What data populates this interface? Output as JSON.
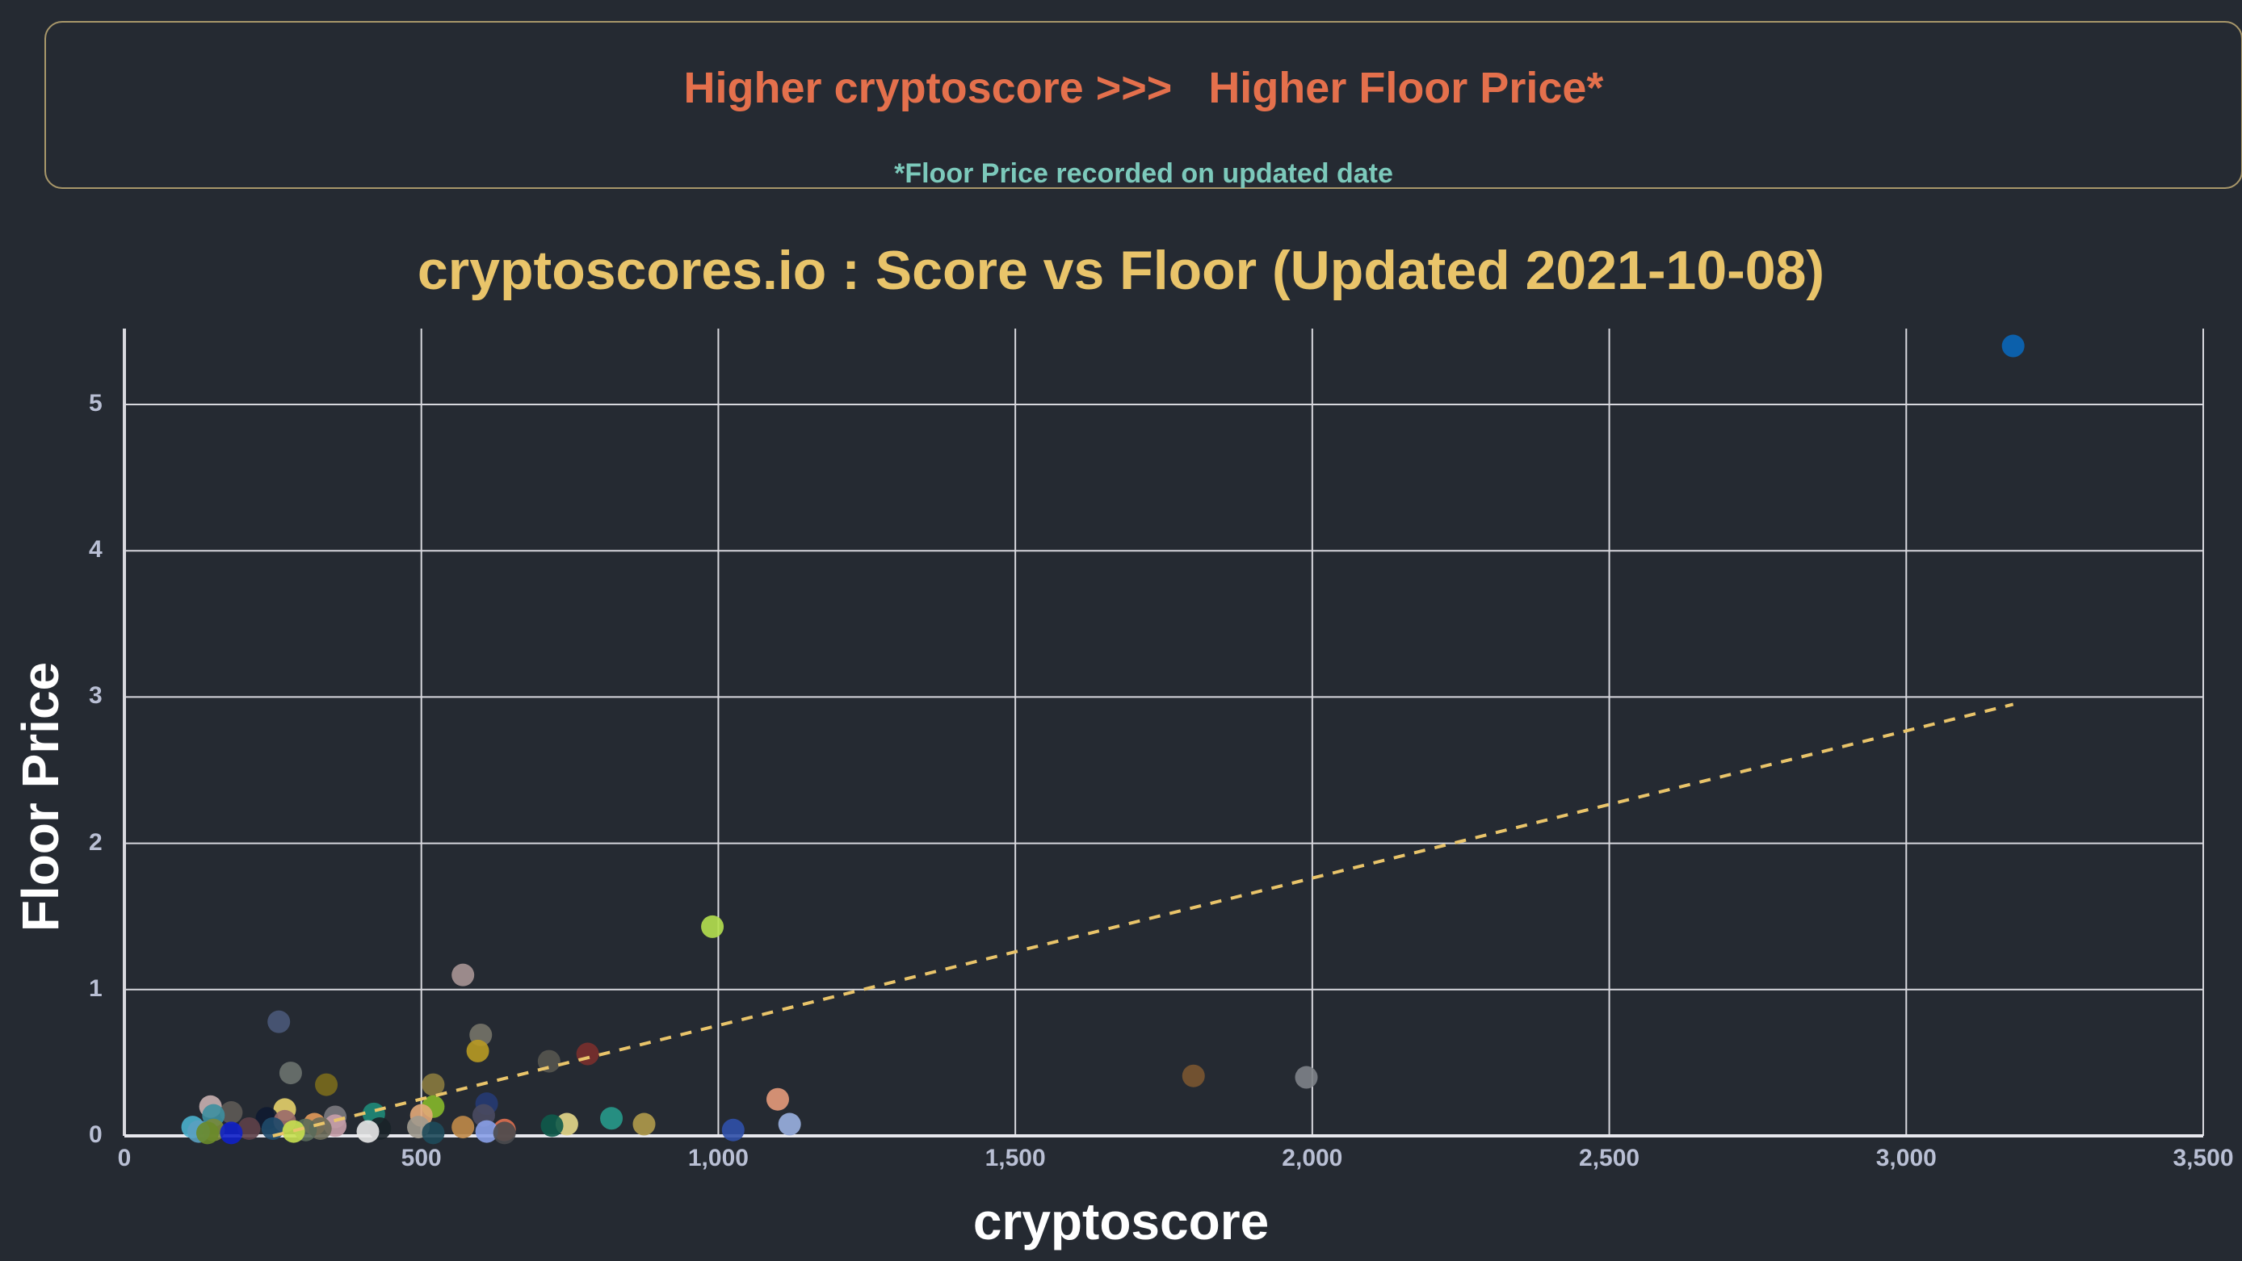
{
  "banner": {
    "headline": "Higher cryptoscore >>>   Higher Floor Price*",
    "footnote": "*Floor Price recorded on updated date",
    "colors": {
      "headline": "#e4704c",
      "footnote": "#7cc9bb",
      "border": "#a8976a"
    }
  },
  "chart_data": {
    "type": "scatter",
    "title": "cryptoscores.io : Score vs Floor (Updated 2021-10-08)",
    "xlabel": "cryptoscore",
    "ylabel": "Floor Price",
    "xlim": [
      0,
      3500
    ],
    "ylim": [
      0,
      5.5
    ],
    "x_ticks": [
      "0",
      "500",
      "1,000",
      "1,500",
      "2,000",
      "2,500",
      "3,000",
      "3,500"
    ],
    "y_ticks": [
      "0",
      "1",
      "2",
      "3",
      "4",
      "5"
    ],
    "grid": true,
    "legend": "none",
    "trendline": {
      "style": "dashed",
      "color": "#e9c46a",
      "x": [
        250,
        3180
      ],
      "y": [
        0.0,
        2.95
      ]
    },
    "points": [
      {
        "x": 3180,
        "y": 5.4,
        "color": "#0a66b8"
      },
      {
        "x": 990,
        "y": 1.43,
        "color": "#b5e04f"
      },
      {
        "x": 570,
        "y": 1.1,
        "color": "#a89595"
      },
      {
        "x": 260,
        "y": 0.78,
        "color": "#4a5878"
      },
      {
        "x": 600,
        "y": 0.69,
        "color": "#767368"
      },
      {
        "x": 595,
        "y": 0.58,
        "color": "#b89a22"
      },
      {
        "x": 780,
        "y": 0.56,
        "color": "#7a2f2c"
      },
      {
        "x": 715,
        "y": 0.51,
        "color": "#57554f"
      },
      {
        "x": 280,
        "y": 0.43,
        "color": "#6b726e"
      },
      {
        "x": 1800,
        "y": 0.41,
        "color": "#7a5530"
      },
      {
        "x": 1990,
        "y": 0.4,
        "color": "#7e8288"
      },
      {
        "x": 340,
        "y": 0.35,
        "color": "#7a6a1c"
      },
      {
        "x": 520,
        "y": 0.35,
        "color": "#8a7a3e"
      },
      {
        "x": 1100,
        "y": 0.25,
        "color": "#e69a7a"
      },
      {
        "x": 610,
        "y": 0.22,
        "color": "#263a72"
      },
      {
        "x": 145,
        "y": 0.2,
        "color": "#c9b0b0"
      },
      {
        "x": 520,
        "y": 0.2,
        "color": "#86b82a"
      },
      {
        "x": 270,
        "y": 0.18,
        "color": "#e6d06a"
      },
      {
        "x": 180,
        "y": 0.16,
        "color": "#5e5a55"
      },
      {
        "x": 150,
        "y": 0.14,
        "color": "#3d8fa0"
      },
      {
        "x": 355,
        "y": 0.13,
        "color": "#7c7a80"
      },
      {
        "x": 240,
        "y": 0.12,
        "color": "#0f1a30"
      },
      {
        "x": 420,
        "y": 0.15,
        "color": "#1f8a78"
      },
      {
        "x": 500,
        "y": 0.14,
        "color": "#e3a878"
      },
      {
        "x": 605,
        "y": 0.14,
        "color": "#4a4a60"
      },
      {
        "x": 820,
        "y": 0.12,
        "color": "#27998a"
      },
      {
        "x": 270,
        "y": 0.1,
        "color": "#9a6a6a"
      },
      {
        "x": 320,
        "y": 0.08,
        "color": "#e39a5a"
      },
      {
        "x": 875,
        "y": 0.08,
        "color": "#b09a4a"
      },
      {
        "x": 745,
        "y": 0.08,
        "color": "#e6d88a"
      },
      {
        "x": 720,
        "y": 0.07,
        "color": "#0e5a4a"
      },
      {
        "x": 355,
        "y": 0.07,
        "color": "#c89ea8"
      },
      {
        "x": 570,
        "y": 0.06,
        "color": "#c08a48"
      },
      {
        "x": 495,
        "y": 0.06,
        "color": "#a09a8e"
      },
      {
        "x": 115,
        "y": 0.06,
        "color": "#4ab0cc"
      },
      {
        "x": 210,
        "y": 0.05,
        "color": "#5e4048"
      },
      {
        "x": 330,
        "y": 0.05,
        "color": "#6a6a58"
      },
      {
        "x": 430,
        "y": 0.05,
        "color": "#1a2228"
      },
      {
        "x": 640,
        "y": 0.04,
        "color": "#e07050"
      },
      {
        "x": 250,
        "y": 0.05,
        "color": "#1f4a6a"
      },
      {
        "x": 150,
        "y": 0.04,
        "color": "#7a8a3a"
      },
      {
        "x": 1120,
        "y": 0.08,
        "color": "#9ab0e0"
      },
      {
        "x": 1025,
        "y": 0.04,
        "color": "#3050a8"
      },
      {
        "x": 180,
        "y": 0.02,
        "color": "#1020c8"
      },
      {
        "x": 125,
        "y": 0.03,
        "color": "#5aa0c0"
      },
      {
        "x": 140,
        "y": 0.02,
        "color": "#6a8a2a"
      },
      {
        "x": 610,
        "y": 0.03,
        "color": "#8aa0e8"
      },
      {
        "x": 410,
        "y": 0.03,
        "color": "#e8e8e8"
      },
      {
        "x": 640,
        "y": 0.02,
        "color": "#4a4a4e"
      },
      {
        "x": 520,
        "y": 0.02,
        "color": "#1e4a5a"
      },
      {
        "x": 305,
        "y": 0.04,
        "color": "#5a6a5a"
      },
      {
        "x": 285,
        "y": 0.03,
        "color": "#c8e050"
      }
    ]
  }
}
